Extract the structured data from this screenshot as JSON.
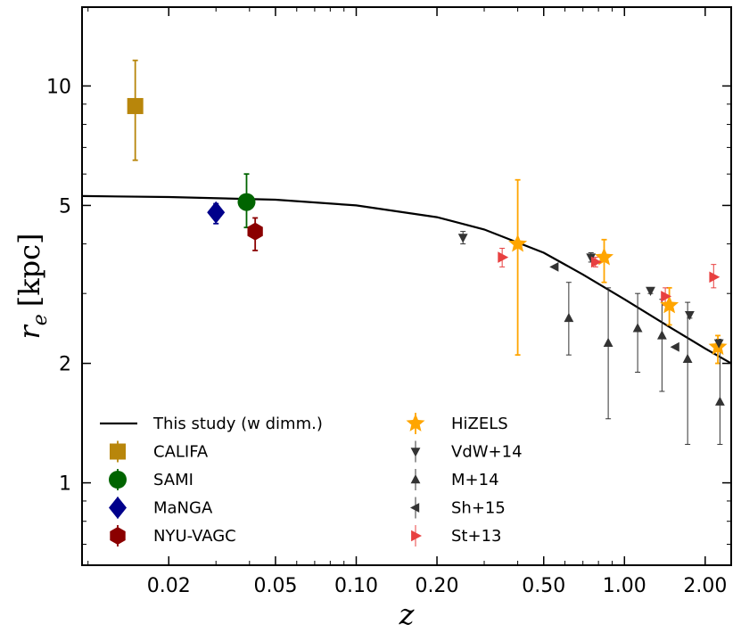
{
  "chart_data": {
    "type": "scatter",
    "title": "",
    "xlabel": "z",
    "ylabel": "r_e [kpc]",
    "ylabel_parts": {
      "symbol": "r",
      "subscript": "e",
      "unit": "[kpc]"
    },
    "xscale": "log",
    "yscale": "log",
    "xlim": [
      0.0095,
      2.5
    ],
    "ylim": [
      0.62,
      15.8
    ],
    "xticks": [
      {
        "value": 0.02,
        "label": "0.02"
      },
      {
        "value": 0.05,
        "label": "0.05"
      },
      {
        "value": 0.1,
        "label": "0.10"
      },
      {
        "value": 0.2,
        "label": "0.20"
      },
      {
        "value": 0.5,
        "label": "0.50"
      },
      {
        "value": 1.0,
        "label": "1.00"
      },
      {
        "value": 2.0,
        "label": "2.00"
      }
    ],
    "yticks": [
      {
        "value": 1,
        "label": "1"
      },
      {
        "value": 2,
        "label": "2"
      },
      {
        "value": 5,
        "label": "5"
      },
      {
        "value": 10,
        "label": "10"
      }
    ],
    "legend_position": "lower-left",
    "model_curve": {
      "name": "This study (w dimm.)",
      "color": "#000000",
      "points": [
        [
          0.0095,
          5.28
        ],
        [
          0.02,
          5.25
        ],
        [
          0.05,
          5.17
        ],
        [
          0.1,
          5.0
        ],
        [
          0.2,
          4.67
        ],
        [
          0.3,
          4.35
        ],
        [
          0.5,
          3.8
        ],
        [
          0.7,
          3.35
        ],
        [
          1.0,
          2.9
        ],
        [
          1.5,
          2.45
        ],
        [
          2.0,
          2.18
        ],
        [
          2.5,
          2.0
        ]
      ]
    },
    "series": [
      {
        "name": "CALIFA",
        "marker": "square",
        "color": "#B8860B",
        "points": [
          {
            "x": 0.015,
            "y": 8.9,
            "ylo": 6.5,
            "yhi": 11.6
          }
        ]
      },
      {
        "name": "SAMI",
        "marker": "circle",
        "color": "#006400",
        "points": [
          {
            "x": 0.039,
            "y": 5.1,
            "ylo": 4.4,
            "yhi": 6.0
          }
        ]
      },
      {
        "name": "MaNGA",
        "marker": "diamond",
        "color": "#00008B",
        "points": [
          {
            "x": 0.03,
            "y": 4.8,
            "ylo": 4.5,
            "yhi": 5.05
          }
        ]
      },
      {
        "name": "NYU-VAGC",
        "marker": "hexagon",
        "color": "#8B0000",
        "points": [
          {
            "x": 0.042,
            "y": 4.3,
            "ylo": 3.85,
            "yhi": 4.65
          }
        ]
      },
      {
        "name": "HiZELS",
        "marker": "star",
        "color": "#FFA500",
        "points": [
          {
            "x": 0.4,
            "y": 4.0,
            "ylo": 2.1,
            "yhi": 5.8
          },
          {
            "x": 0.84,
            "y": 3.7,
            "ylo": 3.2,
            "yhi": 4.1
          },
          {
            "x": 1.47,
            "y": 2.8,
            "ylo": 2.5,
            "yhi": 3.1
          },
          {
            "x": 2.23,
            "y": 2.2,
            "ylo": 2.0,
            "yhi": 2.35
          }
        ]
      },
      {
        "name": "VdW+14",
        "marker": "triangle-down",
        "color": "#333333",
        "points": [
          {
            "x": 0.25,
            "y": 4.15,
            "ylo": 4.0,
            "yhi": 4.3
          },
          {
            "x": 0.75,
            "y": 3.7,
            "ylo": 3.6,
            "yhi": 3.8
          },
          {
            "x": 1.25,
            "y": 3.05,
            "ylo": 3.0,
            "yhi": 3.1
          },
          {
            "x": 1.75,
            "y": 2.65,
            "ylo": 2.6,
            "yhi": 2.7
          },
          {
            "x": 2.25,
            "y": 2.25,
            "ylo": 2.2,
            "yhi": 2.3
          }
        ]
      },
      {
        "name": "M+14",
        "marker": "triangle-up",
        "color": "#333333",
        "points": [
          {
            "x": 0.62,
            "y": 2.6,
            "ylo": 2.1,
            "yhi": 3.2
          },
          {
            "x": 0.87,
            "y": 2.25,
            "ylo": 1.45,
            "yhi": 3.1
          },
          {
            "x": 1.12,
            "y": 2.45,
            "ylo": 1.9,
            "yhi": 3.0
          },
          {
            "x": 1.38,
            "y": 2.35,
            "ylo": 1.7,
            "yhi": 2.9
          },
          {
            "x": 1.72,
            "y": 2.05,
            "ylo": 1.25,
            "yhi": 2.85
          },
          {
            "x": 2.27,
            "y": 1.6,
            "ylo": 1.25,
            "yhi": 2.15
          }
        ]
      },
      {
        "name": "Sh+15",
        "marker": "triangle-left",
        "color": "#333333",
        "points": [
          {
            "x": 0.55,
            "y": 3.5
          },
          {
            "x": 1.55,
            "y": 2.2
          }
        ]
      },
      {
        "name": "St+13",
        "marker": "triangle-right",
        "color": "#E84040",
        "points": [
          {
            "x": 0.35,
            "y": 3.7,
            "ylo": 3.5,
            "yhi": 3.9
          },
          {
            "x": 0.78,
            "y": 3.6,
            "ylo": 3.5,
            "yhi": 3.7
          },
          {
            "x": 1.42,
            "y": 2.95,
            "ylo": 2.8,
            "yhi": 3.1
          },
          {
            "x": 2.15,
            "y": 3.3,
            "ylo": 3.1,
            "yhi": 3.55
          }
        ]
      }
    ]
  }
}
